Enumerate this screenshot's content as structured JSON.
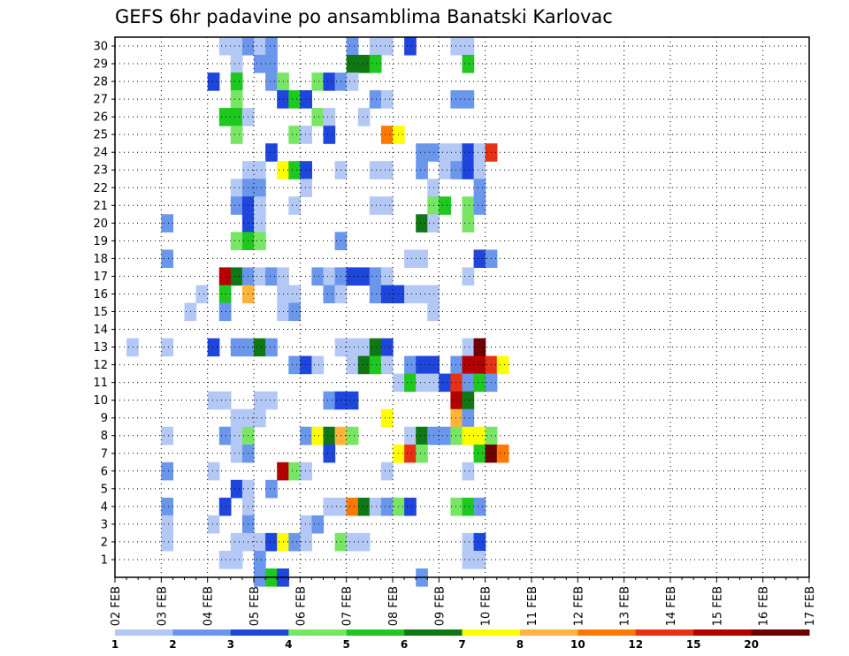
{
  "chart_data": {
    "type": "heatmap",
    "title": "GEFS 6hr padavine po ansamblima Banatski Karlovac",
    "xlabel": "",
    "ylabel": "",
    "x_tick_labels": [
      "02 FEB",
      "03 FEB",
      "04 FEB",
      "05 FEB",
      "06 FEB",
      "07 FEB",
      "08 FEB",
      "09 FEB",
      "10 FEB",
      "11 FEB",
      "12 FEB",
      "13 FEB",
      "14 FEB",
      "15 FEB",
      "16 FEB",
      "17 FEB"
    ],
    "xlim": [
      0,
      60
    ],
    "y_tick_labels": [
      "1",
      "2",
      "3",
      "4",
      "5",
      "6",
      "7",
      "8",
      "9",
      "10",
      "11",
      "12",
      "13",
      "14",
      "15",
      "16",
      "17",
      "18",
      "19",
      "20",
      "21",
      "22",
      "23",
      "24",
      "25",
      "26",
      "27",
      "28",
      "29",
      "30"
    ],
    "ylim": [
      0,
      30
    ],
    "grid": true,
    "colorbar": {
      "labels": [
        "1",
        "2",
        "3",
        "4",
        "5",
        "6",
        "7",
        "8",
        "10",
        "12",
        "15",
        "20"
      ],
      "colors": [
        "#b4c8f5",
        "#6a97eb",
        "#1e46dc",
        "#78e664",
        "#1ec81e",
        "#0f7814",
        "#ffff00",
        "#ffb43c",
        "#ff7800",
        "#e63214",
        "#b40000",
        "#6e0000"
      ]
    },
    "colors": {
      "axis": "#000000",
      "grid": "#000000",
      "background": "#ffffff"
    },
    "cells": [
      {
        "day": "02 FEB",
        "step": 0,
        "member": 30,
        "mm": 0
      },
      {
        "day": "02 FEB",
        "step": 0,
        "member": 0,
        "mm": 0
      }
    ],
    "cell_list": [
      [
        9,
        30,
        1
      ],
      [
        10,
        30,
        1
      ],
      [
        10,
        29,
        1
      ],
      [
        11,
        30,
        2
      ],
      [
        12,
        30,
        1
      ],
      [
        12,
        29,
        2
      ],
      [
        13,
        30,
        2
      ],
      [
        13,
        29,
        2
      ],
      [
        20,
        30,
        2
      ],
      [
        22,
        30,
        1
      ],
      [
        23,
        30,
        1
      ],
      [
        25,
        30,
        3
      ],
      [
        29,
        30,
        1
      ],
      [
        30,
        30,
        1
      ],
      [
        20,
        29,
        6
      ],
      [
        21,
        29,
        6
      ],
      [
        22,
        29,
        5
      ],
      [
        30,
        29,
        5
      ],
      [
        8,
        28,
        3
      ],
      [
        10,
        28,
        5
      ],
      [
        13,
        28,
        2
      ],
      [
        14,
        28,
        4
      ],
      [
        17,
        28,
        4
      ],
      [
        18,
        28,
        3
      ],
      [
        19,
        28,
        2
      ],
      [
        20,
        28,
        1
      ],
      [
        10,
        27,
        4
      ],
      [
        14,
        27,
        3
      ],
      [
        15,
        27,
        5
      ],
      [
        16,
        27,
        3
      ],
      [
        22,
        27,
        2
      ],
      [
        23,
        27,
        1
      ],
      [
        29,
        27,
        2
      ],
      [
        30,
        27,
        2
      ],
      [
        9,
        26,
        5
      ],
      [
        10,
        26,
        5
      ],
      [
        11,
        26,
        1
      ],
      [
        17,
        26,
        4
      ],
      [
        18,
        26,
        1
      ],
      [
        21,
        26,
        1
      ],
      [
        10,
        25,
        4
      ],
      [
        15,
        25,
        4
      ],
      [
        16,
        25,
        1
      ],
      [
        18,
        25,
        3
      ],
      [
        23,
        25,
        9
      ],
      [
        24,
        25,
        7
      ],
      [
        13,
        24,
        3
      ],
      [
        26,
        24,
        2
      ],
      [
        27,
        24,
        2
      ],
      [
        28,
        24,
        1
      ],
      [
        29,
        24,
        1
      ],
      [
        30,
        24,
        3
      ],
      [
        31,
        24,
        1
      ],
      [
        32,
        24,
        10
      ],
      [
        11,
        23,
        1
      ],
      [
        12,
        23,
        1
      ],
      [
        14,
        23,
        7
      ],
      [
        15,
        23,
        5
      ],
      [
        16,
        23,
        3
      ],
      [
        19,
        23,
        1
      ],
      [
        22,
        23,
        1
      ],
      [
        23,
        23,
        1
      ],
      [
        26,
        23,
        2
      ],
      [
        28,
        23,
        1
      ],
      [
        29,
        23,
        2
      ],
      [
        30,
        23,
        3
      ],
      [
        31,
        23,
        1
      ],
      [
        10,
        22,
        1
      ],
      [
        11,
        22,
        2
      ],
      [
        12,
        22,
        2
      ],
      [
        16,
        22,
        1
      ],
      [
        27,
        22,
        1
      ],
      [
        31,
        22,
        2
      ],
      [
        10,
        21,
        2
      ],
      [
        11,
        21,
        3
      ],
      [
        12,
        21,
        1
      ],
      [
        15,
        21,
        1
      ],
      [
        22,
        21,
        1
      ],
      [
        23,
        21,
        1
      ],
      [
        27,
        21,
        4
      ],
      [
        28,
        21,
        5
      ],
      [
        30,
        21,
        4
      ],
      [
        31,
        21,
        2
      ],
      [
        4,
        20,
        2
      ],
      [
        11,
        20,
        3
      ],
      [
        12,
        20,
        1
      ],
      [
        26,
        20,
        6
      ],
      [
        27,
        20,
        1
      ],
      [
        30,
        20,
        4
      ],
      [
        10,
        19,
        4
      ],
      [
        11,
        19,
        5
      ],
      [
        12,
        19,
        4
      ],
      [
        19,
        19,
        2
      ],
      [
        4,
        18,
        2
      ],
      [
        25,
        18,
        1
      ],
      [
        26,
        18,
        1
      ],
      [
        31,
        18,
        3
      ],
      [
        32,
        18,
        2
      ],
      [
        9,
        17,
        11
      ],
      [
        10,
        17,
        6
      ],
      [
        11,
        17,
        2
      ],
      [
        12,
        17,
        1
      ],
      [
        13,
        17,
        2
      ],
      [
        14,
        17,
        1
      ],
      [
        17,
        17,
        2
      ],
      [
        18,
        17,
        1
      ],
      [
        19,
        17,
        2
      ],
      [
        20,
        17,
        3
      ],
      [
        21,
        17,
        3
      ],
      [
        22,
        17,
        2
      ],
      [
        23,
        17,
        1
      ],
      [
        30,
        17,
        1
      ],
      [
        7,
        16,
        1
      ],
      [
        9,
        16,
        5
      ],
      [
        11,
        16,
        8
      ],
      [
        14,
        16,
        1
      ],
      [
        15,
        16,
        1
      ],
      [
        18,
        16,
        2
      ],
      [
        19,
        16,
        1
      ],
      [
        22,
        16,
        2
      ],
      [
        23,
        16,
        3
      ],
      [
        24,
        16,
        3
      ],
      [
        25,
        16,
        1
      ],
      [
        26,
        16,
        1
      ],
      [
        27,
        16,
        1
      ],
      [
        6,
        15,
        1
      ],
      [
        9,
        15,
        2
      ],
      [
        14,
        15,
        1
      ],
      [
        15,
        15,
        2
      ],
      [
        27,
        15,
        1
      ],
      [
        1,
        13,
        1
      ],
      [
        4,
        13,
        1
      ],
      [
        8,
        13,
        3
      ],
      [
        10,
        13,
        2
      ],
      [
        11,
        13,
        2
      ],
      [
        12,
        13,
        6
      ],
      [
        13,
        13,
        2
      ],
      [
        19,
        13,
        1
      ],
      [
        20,
        13,
        1
      ],
      [
        21,
        13,
        1
      ],
      [
        22,
        13,
        6
      ],
      [
        23,
        13,
        3
      ],
      [
        30,
        13,
        1
      ],
      [
        31,
        13,
        12
      ],
      [
        15,
        12,
        2
      ],
      [
        16,
        12,
        3
      ],
      [
        17,
        12,
        1
      ],
      [
        20,
        12,
        1
      ],
      [
        21,
        12,
        6
      ],
      [
        22,
        12,
        5
      ],
      [
        23,
        12,
        1
      ],
      [
        25,
        12,
        2
      ],
      [
        26,
        12,
        3
      ],
      [
        27,
        12,
        3
      ],
      [
        29,
        12,
        2
      ],
      [
        30,
        12,
        11
      ],
      [
        31,
        12,
        11
      ],
      [
        32,
        12,
        10
      ],
      [
        33,
        12,
        7
      ],
      [
        24,
        11,
        1
      ],
      [
        25,
        11,
        5
      ],
      [
        26,
        11,
        1
      ],
      [
        27,
        11,
        1
      ],
      [
        28,
        11,
        3
      ],
      [
        29,
        11,
        10
      ],
      [
        30,
        11,
        2
      ],
      [
        31,
        11,
        5
      ],
      [
        32,
        11,
        2
      ],
      [
        8,
        10,
        1
      ],
      [
        9,
        10,
        1
      ],
      [
        12,
        10,
        1
      ],
      [
        13,
        10,
        1
      ],
      [
        18,
        10,
        2
      ],
      [
        19,
        10,
        3
      ],
      [
        20,
        10,
        3
      ],
      [
        29,
        10,
        11
      ],
      [
        30,
        10,
        6
      ],
      [
        10,
        9,
        1
      ],
      [
        11,
        9,
        1
      ],
      [
        12,
        9,
        1
      ],
      [
        23,
        9,
        7
      ],
      [
        29,
        9,
        8
      ],
      [
        30,
        9,
        2
      ],
      [
        4,
        8,
        1
      ],
      [
        9,
        8,
        2
      ],
      [
        10,
        8,
        1
      ],
      [
        11,
        8,
        4
      ],
      [
        16,
        8,
        2
      ],
      [
        17,
        8,
        7
      ],
      [
        18,
        8,
        6
      ],
      [
        19,
        8,
        8
      ],
      [
        20,
        8,
        4
      ],
      [
        25,
        8,
        1
      ],
      [
        26,
        8,
        6
      ],
      [
        27,
        8,
        2
      ],
      [
        28,
        8,
        2
      ],
      [
        29,
        8,
        4
      ],
      [
        30,
        8,
        7
      ],
      [
        31,
        8,
        7
      ],
      [
        32,
        8,
        4
      ],
      [
        10,
        7,
        1
      ],
      [
        11,
        7,
        2
      ],
      [
        18,
        7,
        3
      ],
      [
        24,
        7,
        7
      ],
      [
        25,
        7,
        10
      ],
      [
        26,
        7,
        4
      ],
      [
        31,
        7,
        5
      ],
      [
        32,
        7,
        12
      ],
      [
        33,
        7,
        9
      ],
      [
        4,
        6,
        2
      ],
      [
        8,
        6,
        1
      ],
      [
        14,
        6,
        11
      ],
      [
        15,
        6,
        4
      ],
      [
        16,
        6,
        1
      ],
      [
        23,
        6,
        1
      ],
      [
        30,
        6,
        1
      ],
      [
        10,
        5,
        3
      ],
      [
        11,
        5,
        1
      ],
      [
        13,
        5,
        2
      ],
      [
        4,
        4,
        2
      ],
      [
        9,
        4,
        3
      ],
      [
        11,
        4,
        1
      ],
      [
        18,
        4,
        1
      ],
      [
        19,
        4,
        1
      ],
      [
        20,
        4,
        9
      ],
      [
        21,
        4,
        6
      ],
      [
        22,
        4,
        1
      ],
      [
        23,
        4,
        2
      ],
      [
        24,
        4,
        4
      ],
      [
        25,
        4,
        3
      ],
      [
        29,
        4,
        4
      ],
      [
        30,
        4,
        5
      ],
      [
        31,
        4,
        2
      ],
      [
        4,
        3,
        1
      ],
      [
        8,
        3,
        1
      ],
      [
        11,
        3,
        2
      ],
      [
        16,
        3,
        1
      ],
      [
        17,
        3,
        2
      ],
      [
        4,
        2,
        1
      ],
      [
        10,
        2,
        1
      ],
      [
        11,
        2,
        1
      ],
      [
        12,
        2,
        1
      ],
      [
        13,
        2,
        3
      ],
      [
        14,
        2,
        7
      ],
      [
        15,
        2,
        2
      ],
      [
        16,
        2,
        1
      ],
      [
        19,
        2,
        4
      ],
      [
        20,
        2,
        1
      ],
      [
        21,
        2,
        1
      ],
      [
        30,
        2,
        1
      ],
      [
        31,
        2,
        3
      ],
      [
        9,
        1,
        1
      ],
      [
        10,
        1,
        1
      ],
      [
        12,
        1,
        2
      ],
      [
        30,
        1,
        1
      ],
      [
        31,
        1,
        1
      ],
      [
        12,
        0,
        2
      ],
      [
        13,
        0,
        5
      ],
      [
        14,
        0,
        3
      ],
      [
        26,
        0,
        2
      ]
    ]
  }
}
